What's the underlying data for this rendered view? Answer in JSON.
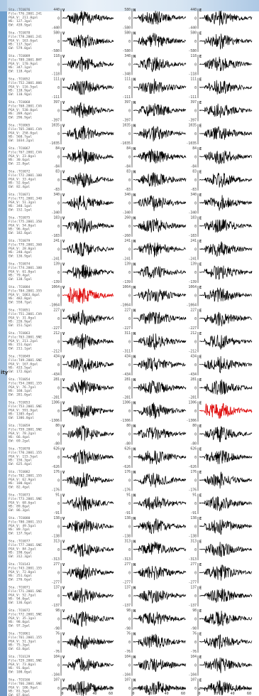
{
  "side_label": "ity",
  "chart_data": {
    "type": "line",
    "title": "",
    "components": [
      "V",
      "N",
      "E"
    ],
    "x_ticks": [
      "0",
      "20",
      "40",
      "60"
    ],
    "stations": [
      {
        "info": [
          "Sta.:TCU076",
          "File:T76.2001.241",
          "PGA_V: 211.8gal",
          "NS: 127.3gal",
          "EW: 439.9gal"
        ],
        "amp": [
          440,
          580,
          440
        ]
      },
      {
        "info": [
          "Sta.:TCU078",
          "File:T78.2001.241",
          "PGA_V: 163.6gal",
          "NS: 117.3gal",
          "EW: 579.0gal"
        ],
        "amp": [
          580,
          580,
          580
        ]
      },
      {
        "info": [
          "Sta.:TCU089",
          "File:T89.2001.BHT",
          "PGA_V: 170.9gal",
          "NS: 347.1gal",
          "EW: 118.4gal"
        ],
        "amp": [
          118,
          348,
          118
        ]
      },
      {
        "info": [
          "Sta.:TCU052",
          "File:T52.2001.006",
          "PGA_V: 116.5gal",
          "NS: 110.9gal",
          "EW: 110.9gal"
        ],
        "amp": [
          111,
          111,
          111
        ]
      },
      {
        "info": [
          "Sta.:TCU068",
          "File:T68.2001.CVA",
          "PGA_V: 530.0gal",
          "NS: 289.4gal",
          "EW: 296.9gal"
        ],
        "amp": [
          397,
          397,
          397
        ]
      },
      {
        "info": [
          "Sta.:TCU065",
          "File:T65.2001.CVA",
          "PGA_V: 258.0gal",
          "NS: 560.7gal",
          "EW: 1034.2gal"
        ],
        "amp": [
          1035,
          1035,
          1035
        ]
      },
      {
        "info": [
          "Sta.:TCU067",
          "File:T67.2001.CVA",
          "PGA_V: 23.0gal",
          "NS: 30.6gal",
          "EW: 22.8gal"
        ],
        "amp": [
          84,
          84,
          84
        ]
      },
      {
        "info": [
          "Sta.:TCU072",
          "File:T72.2001.100",
          "PGA_V: 33.4gal",
          "NS: 52.6gal",
          "EW: 82.4gal"
        ],
        "amp": [
          83,
          83,
          83
        ]
      },
      {
        "info": [
          "Sta.:TCU071",
          "File:T71.2001.340",
          "PGA_V: 51.3gal",
          "NS: 340.1gal",
          "EW: 152.1gal"
        ],
        "amp": [
          340,
          340,
          340
        ]
      },
      {
        "info": [
          "Sta.:TCU075",
          "File:T75.2001.350",
          "PGA_V: 54.0gal",
          "NS: 96.4gal",
          "EW: 182.0gal"
        ],
        "amp": [
          183,
          260,
          183
        ]
      },
      {
        "info": [
          "Sta.:TCU079",
          "File:T79.2001.360",
          "PGA_V: 28.0gal",
          "NS: 240.4gal",
          "EW: 136.9gal"
        ],
        "amp": [
          241,
          241,
          241
        ]
      },
      {
        "info": [
          "Sta.:TCU074",
          "File:T74.2001.100",
          "PGA_V: 61.0gal",
          "NS: 79.4gal",
          "EW: 138.5gal"
        ],
        "amp": [
          139,
          139,
          139
        ]
      },
      {
        "info": [
          "Sta.:TCU084",
          "File:T84.2001.355",
          "PGA_V: 1063.0gal",
          "NS: 482.8gal",
          "EW: 558.7gal"
        ],
        "amp": [
          1064,
          1064,
          1064
        ],
        "hl": 0
      },
      {
        "info": [
          "Sta.:TCU051",
          "File:T51.2001.CVA",
          "PGA_V: 31.0gal",
          "NS: 226.9gal",
          "EW: 151.5gal"
        ],
        "amp": [
          227,
          227,
          227
        ]
      },
      {
        "info": [
          "Sta.:TCU063",
          "File:T63.2001.SNE",
          "PGA_V: 211.2gal",
          "NS: 151.6gal",
          "EW: 211.1gal"
        ],
        "amp": [
          212,
          311,
          212
        ]
      },
      {
        "info": [
          "Sta.:TCU049",
          "File:T49.2001.SNE",
          "PGA_V: 167.0gal",
          "NS: 433.5gal",
          "EW: 172.0gal"
        ],
        "amp": [
          434,
          434,
          434
        ]
      },
      {
        "info": [
          "Sta.:TCU054",
          "File:T54.2001.155",
          "PGA_V: 76.7gal",
          "NS: 160.1gal",
          "EW: 281.0gal"
        ],
        "amp": [
          281,
          281,
          281
        ]
      },
      {
        "info": [
          "Sta.:TCU053",
          "File:T53.2001.SNE",
          "PGA_V: 591.9gal",
          "NS: 1305.4gal",
          "EW: 1306.0gal"
        ],
        "amp": [
          1306,
          1306,
          1306
        ],
        "hl": 2
      },
      {
        "info": [
          "Sta.:TCU059",
          "File:T59.2001.SNE",
          "PGA_V: 78.2gal",
          "NS: 66.4gal",
          "EW: 69.2gal"
        ],
        "amp": [
          80,
          80,
          80
        ]
      },
      {
        "info": [
          "Sta.:TCU070",
          "File:T70.2001.155",
          "PGA_V: 115.5gal",
          "NS: 156.3gal",
          "EW: 625.4gal"
        ],
        "amp": [
          626,
          626,
          626
        ]
      },
      {
        "info": [
          "Sta.:TCU082",
          "File:T82.2001.155",
          "PGA_V: 62.9gal",
          "NS: 100.8gal",
          "EW: 82.4gal"
        ],
        "amp": [
          176,
          176,
          176
        ]
      },
      {
        "info": [
          "Sta.:TCU073",
          "File:T73.2001.SNE",
          "PGA_V: 68.6gal",
          "NS: 89.0gal",
          "EW: 86.3gal"
        ],
        "amp": [
          91,
          91,
          91
        ]
      },
      {
        "info": [
          "Sta.:TCU080",
          "File:T80.2001.153",
          "PGA_V: 49.5gal",
          "NS: 89.7gal",
          "EW: 137.9gal"
        ],
        "amp": [
          138,
          138,
          138
        ]
      },
      {
        "info": [
          "Sta.:TCU077",
          "File:T77.2001.SNE",
          "PGA_V: 84.2gal",
          "NS: 190.6gal",
          "EW: 312.3gal"
        ],
        "amp": [
          313,
          313,
          313
        ]
      },
      {
        "info": [
          "Sta.:TCU143",
          "File:T43.2001.155",
          "PGA_V: 72.0gal",
          "NS: 251.6gal",
          "EW: 276.6gal"
        ],
        "amp": [
          277,
          277,
          277
        ]
      },
      {
        "info": [
          "Sta.:TCU071",
          "File:T71.2001.SNE",
          "PGA_V: 52.7gal",
          "NS: 94.0gal",
          "EW: 136.6gal"
        ],
        "amp": [
          137,
          137,
          137
        ]
      },
      {
        "info": [
          "Sta.:TCU072",
          "File:T72.2001.SNE",
          "PGA_V: 35.1gal",
          "NS: 98.0gal",
          "EW: 97.2gal"
        ],
        "amp": [
          98,
          98,
          98
        ]
      },
      {
        "info": [
          "Sta.:TCU061",
          "File:T61.2001.155",
          "PGA_V: 51.3gal",
          "NS: 75.3gal",
          "EW: 63.0gal"
        ],
        "amp": [
          76,
          76,
          76
        ]
      },
      {
        "info": [
          "Sta.:TCU129",
          "File:T29.2001.SNE",
          "PGA_V: 73.0gal",
          "NS: 91.0gal",
          "EW: 100.0gal"
        ],
        "amp": [
          104,
          104,
          104
        ]
      },
      {
        "info": [
          "Sta.:TCU166",
          "File:T66.2001.SNE",
          "PGA_V: 106.9gal",
          "NS: 81.5gal",
          "EW: 87.0gal"
        ],
        "amp": [
          107,
          107,
          107
        ]
      }
    ]
  }
}
